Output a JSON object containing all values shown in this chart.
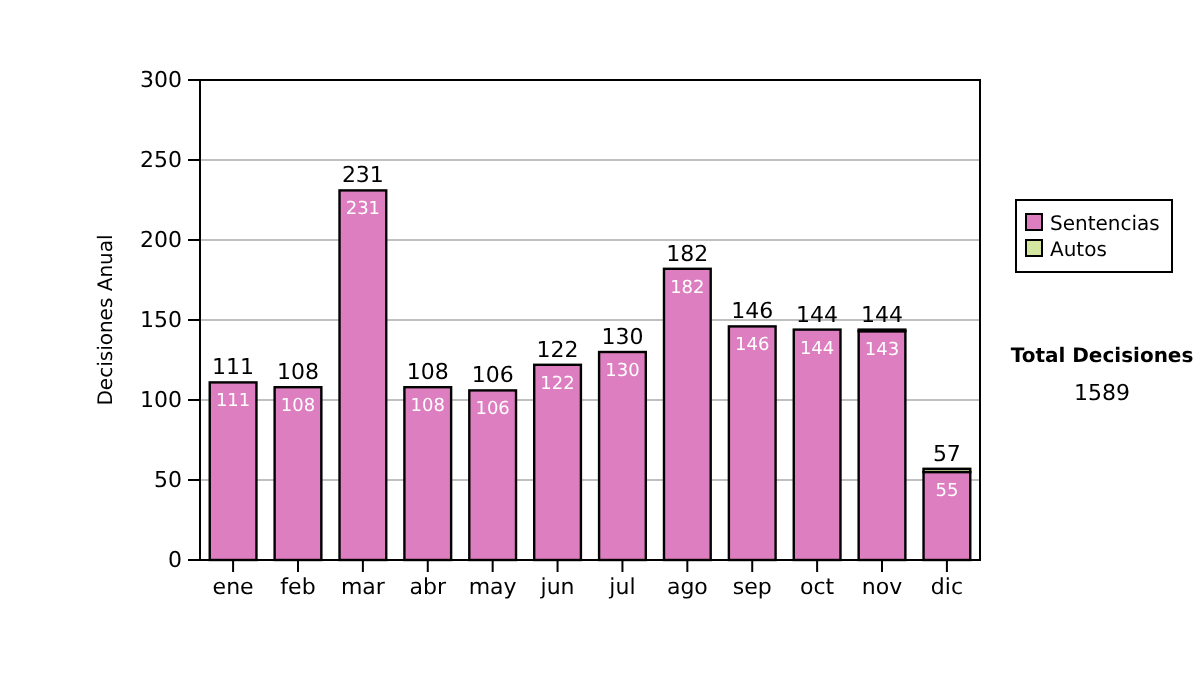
{
  "chart_data": {
    "type": "bar",
    "stacked": true,
    "ylabel": "Decisiones Anual",
    "categories": [
      "ene",
      "feb",
      "mar",
      "abr",
      "may",
      "jun",
      "jul",
      "ago",
      "sep",
      "oct",
      "nov",
      "dic"
    ],
    "series": [
      {
        "name": "Sentencias",
        "color": "#dd7ec0",
        "values": [
          111,
          108,
          231,
          108,
          106,
          122,
          130,
          182,
          146,
          144,
          143,
          55
        ],
        "value_labels": [
          "111",
          "108",
          "231",
          "108",
          "106",
          "122",
          "130",
          "182",
          "146",
          "144",
          "143",
          "55"
        ]
      },
      {
        "name": "Autos",
        "color": "#d4e6a0",
        "values": [
          0,
          0,
          0,
          0,
          0,
          0,
          0,
          0,
          0,
          0,
          1,
          2
        ]
      }
    ],
    "totals": [
      "111",
      "108",
      "231",
      "108",
      "106",
      "122",
      "130",
      "182",
      "146",
      "144",
      "144",
      "57"
    ],
    "ylim": [
      0,
      300
    ],
    "yticks": [
      0,
      50,
      100,
      150,
      200,
      250,
      300
    ],
    "grid": "y",
    "legend": "right",
    "annotations": [
      "Total Decisiones",
      "1589"
    ]
  }
}
